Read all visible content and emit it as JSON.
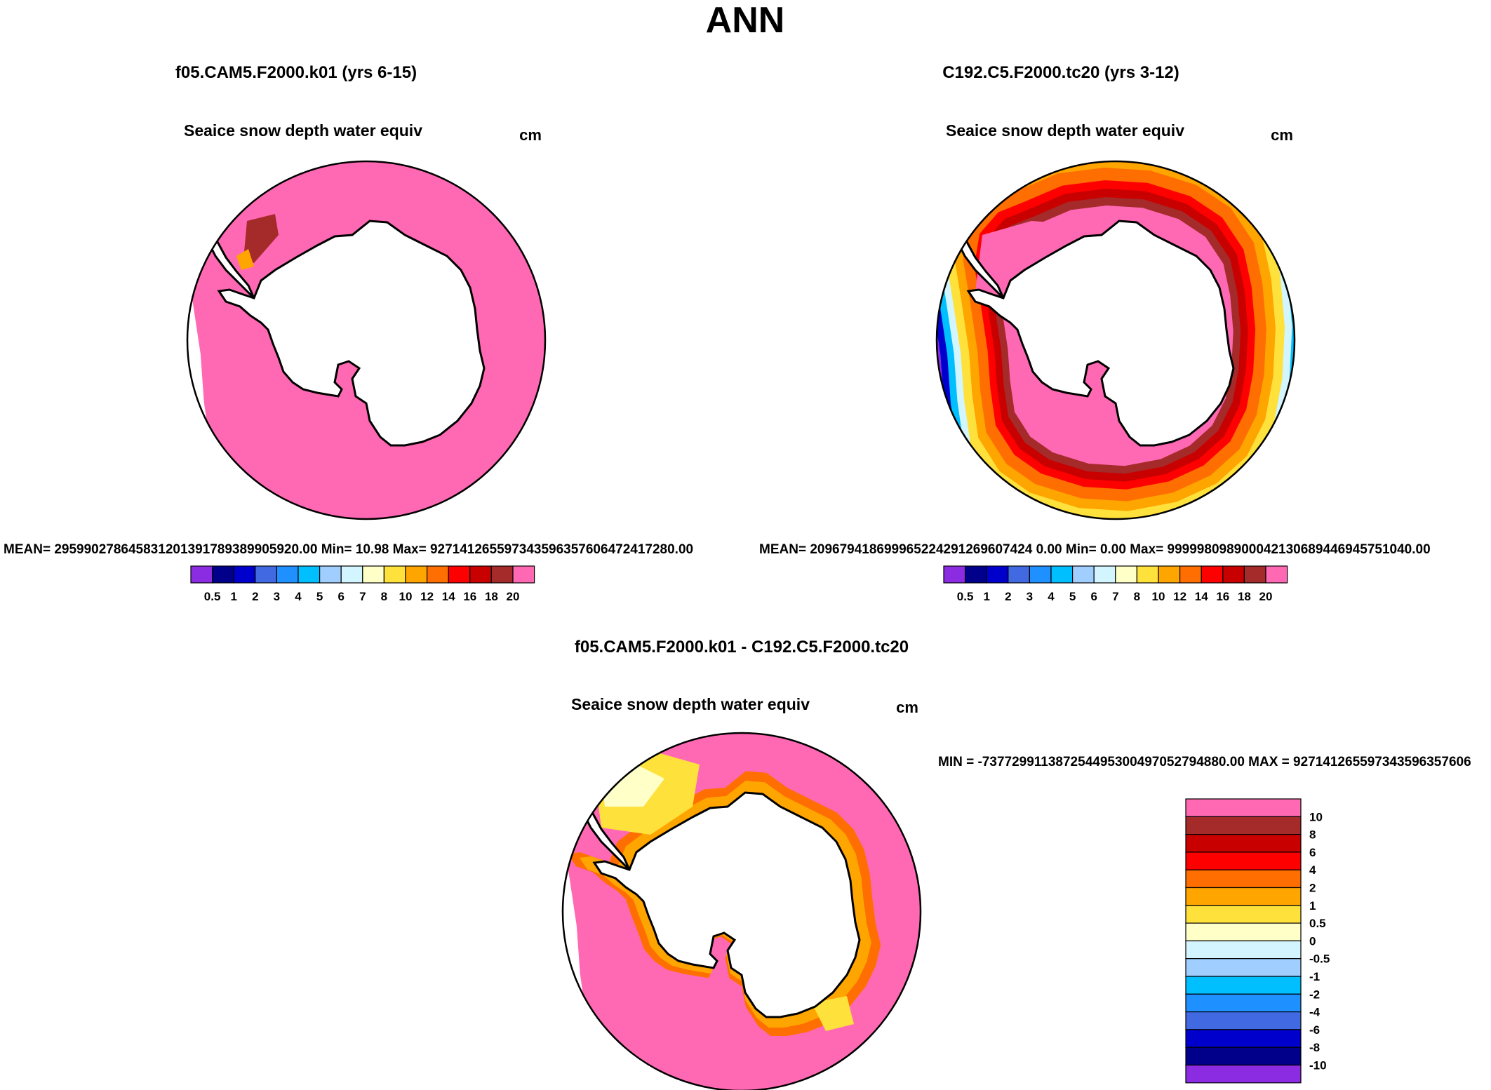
{
  "season": "ANN",
  "panels": [
    {
      "case": "f05.CAM5.F2000.k01 (yrs 6-15)",
      "field_label": "Seaice snow depth water equiv",
      "units": "cm",
      "stats": "MEAN= 295990278645831201391789389905920.00  Min=  10.98  Max= 927141265597343596357606472417280.00",
      "colorbar_labels": [
        "0.5",
        "1",
        "2",
        "3",
        "4",
        "5",
        "6",
        "7",
        "8",
        "10",
        "12",
        "14",
        "16",
        "18",
        "20"
      ]
    },
    {
      "case": "C192.C5.F2000.tc20 (yrs 3-12)",
      "field_label": "Seaice snow depth water equiv",
      "units": "cm",
      "stats": "MEAN= 209679418699965224291269607424 0.00  Min=   0.00  Max= 999998098900042130689446945751040.00",
      "colorbar_labels": [
        "0.5",
        "1",
        "2",
        "3",
        "4",
        "5",
        "6",
        "7",
        "8",
        "10",
        "12",
        "14",
        "16",
        "18",
        "20"
      ]
    }
  ],
  "diff": {
    "title": "f05.CAM5.F2000.k01 - C192.C5.F2000.tc20",
    "field_label": "Seaice snow depth water equiv",
    "units": "cm",
    "stats": "MIN = -737729911387254495300497052794880.00 MAX = 927141265597343596357606",
    "colorbar_labels": [
      "10",
      "8",
      "6",
      "4",
      "2",
      "1",
      "0.5",
      "0",
      "-0.5",
      "-1",
      "-2",
      "-4",
      "-6",
      "-8",
      "-10"
    ]
  },
  "colors": {
    "abs_scale": [
      "#8b2be2",
      "#00008b",
      "#0000cd",
      "#4169e1",
      "#1e90ff",
      "#00bfff",
      "#a0cfff",
      "#d2f5ff",
      "#ffffc8",
      "#ffe13c",
      "#ffa500",
      "#ff6e00",
      "#ff0000",
      "#c80000",
      "#a52a2a",
      "#ff69b4"
    ],
    "diff_scale": [
      "#ff69b4",
      "#a52a2a",
      "#c80000",
      "#ff0000",
      "#ff6e00",
      "#ffa500",
      "#ffe13c",
      "#ffffc8",
      "#d2f5ff",
      "#a0cfff",
      "#00bfff",
      "#1e90ff",
      "#4169e1",
      "#0000cd",
      "#00008b",
      "#8b2be2"
    ]
  }
}
